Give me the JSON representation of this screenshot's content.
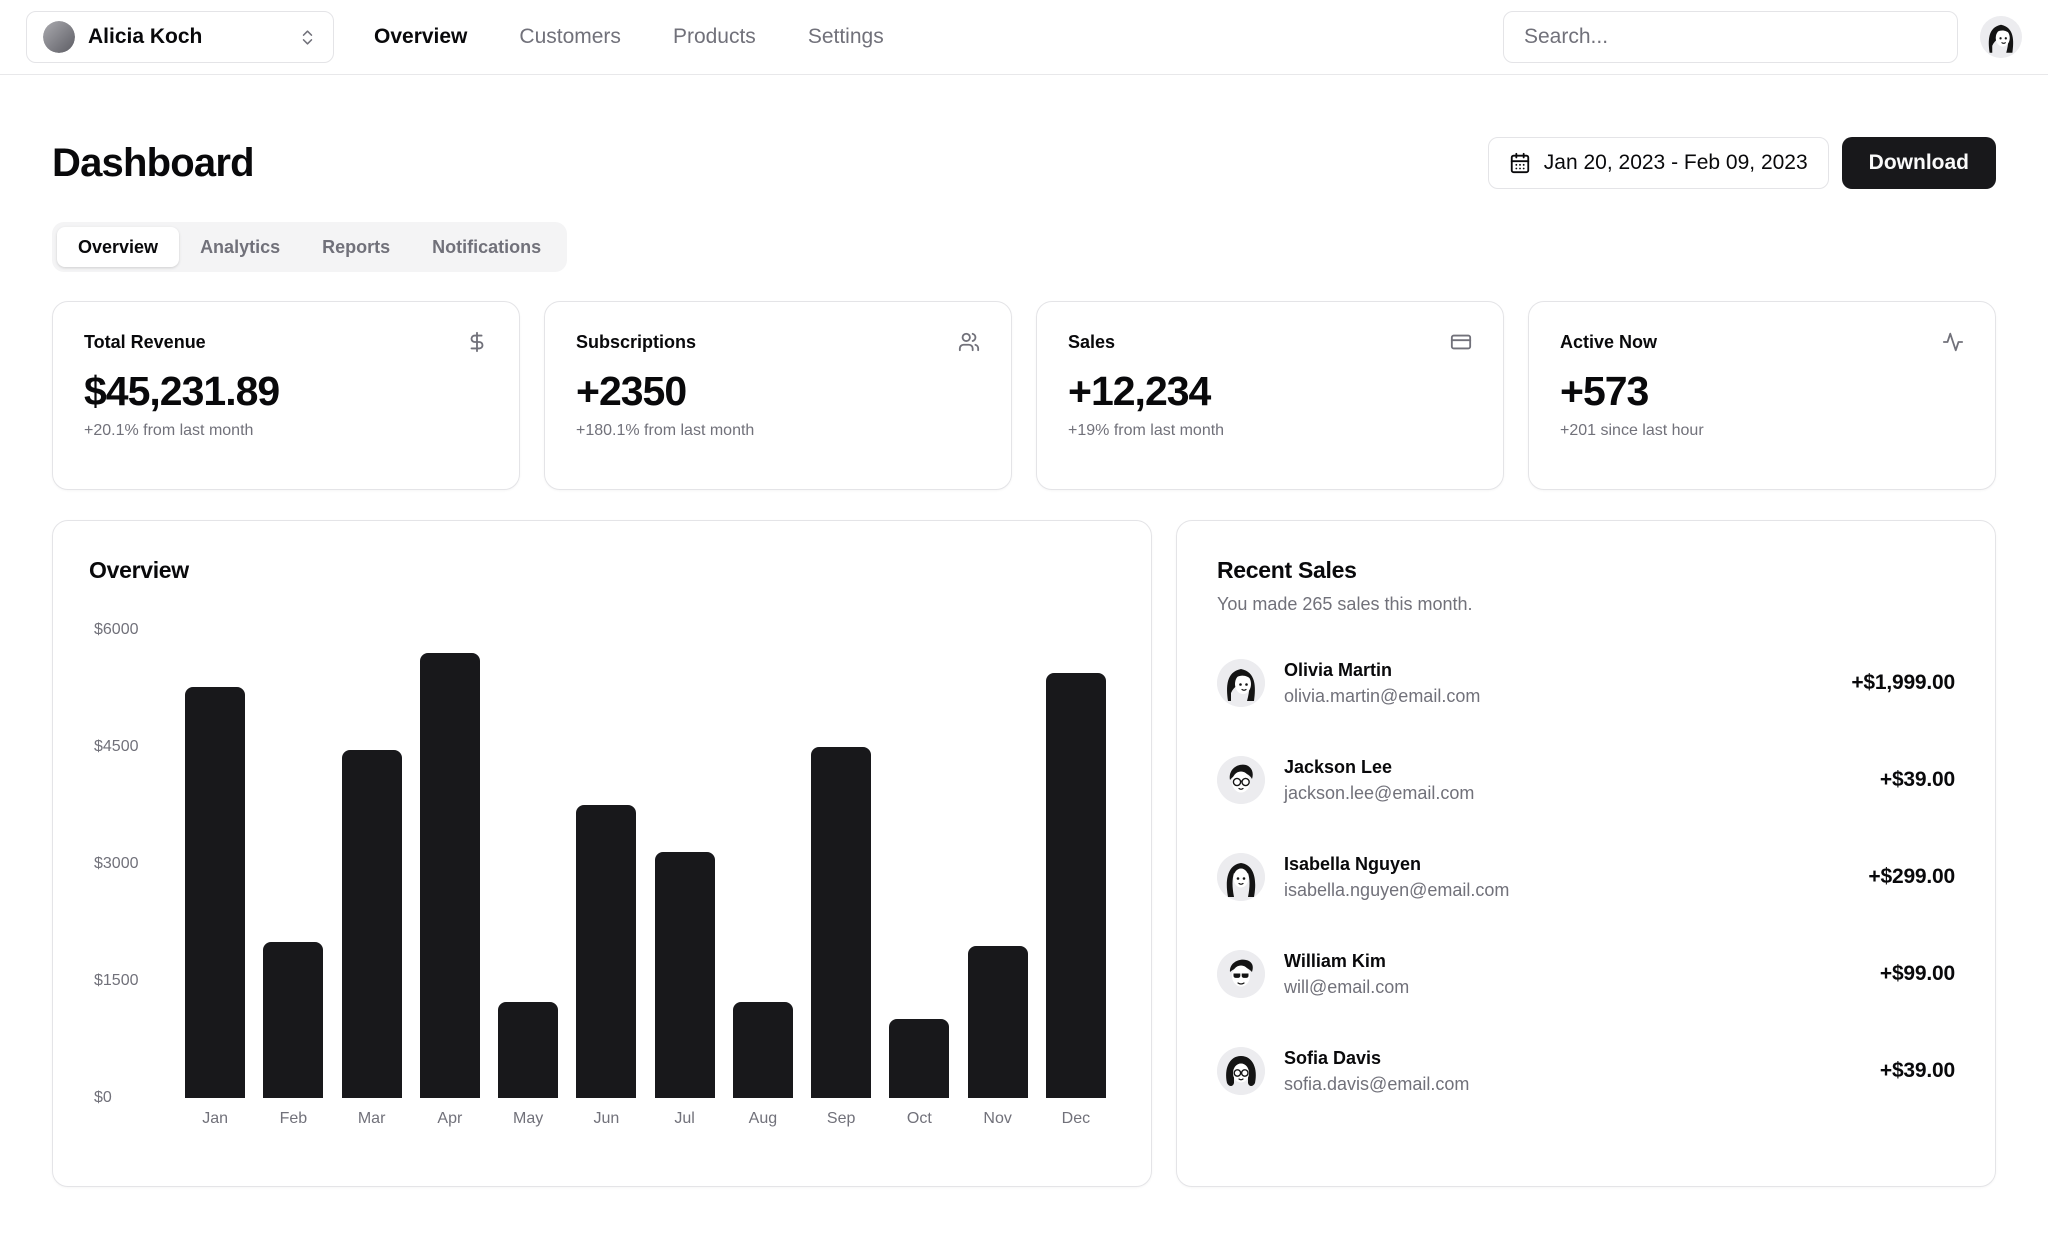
{
  "header": {
    "team_name": "Alicia Koch",
    "nav": [
      "Overview",
      "Customers",
      "Products",
      "Settings"
    ],
    "search_placeholder": "Search...",
    "icons": [
      "chevrons-up-down-icon",
      "user-avatar"
    ]
  },
  "page": {
    "title": "Dashboard",
    "date_range": "Jan 20, 2023 - Feb 09, 2023",
    "date_icon": "calendar-days-icon",
    "download_label": "Download",
    "tabs": [
      {
        "label": "Overview",
        "active": true
      },
      {
        "label": "Analytics",
        "active": false
      },
      {
        "label": "Reports",
        "active": false
      },
      {
        "label": "Notifications",
        "active": false
      }
    ]
  },
  "stats": [
    {
      "title": "Total Revenue",
      "icon": "dollar-sign-icon",
      "value": "$45,231.89",
      "change": "+20.1% from last month"
    },
    {
      "title": "Subscriptions",
      "icon": "users-icon",
      "value": "+2350",
      "change": "+180.1% from last month"
    },
    {
      "title": "Sales",
      "icon": "credit-card-icon",
      "value": "+12,234",
      "change": "+19% from last month"
    },
    {
      "title": "Active Now",
      "icon": "activity-icon",
      "value": "+573",
      "change": "+201 since last hour"
    }
  ],
  "chart_data": {
    "type": "bar",
    "title": "Overview",
    "categories": [
      "Jan",
      "Feb",
      "Mar",
      "Apr",
      "May",
      "Jun",
      "Jul",
      "Aug",
      "Sep",
      "Oct",
      "Nov",
      "Dec"
    ],
    "values": [
      5270,
      2000,
      4460,
      5700,
      1230,
      3760,
      3150,
      1230,
      4500,
      1010,
      1950,
      5450
    ],
    "xlabel": "",
    "ylabel": "",
    "ylim": [
      0,
      6000
    ],
    "yticks": [
      "$6000",
      "$4500",
      "$3000",
      "$1500",
      "$0"
    ],
    "grid": false,
    "legend": "none",
    "bar_color": "#18181b"
  },
  "recent_sales": {
    "title": "Recent Sales",
    "subtitle": "You made 265 sales this month.",
    "items": [
      {
        "name": "Olivia Martin",
        "email": "olivia.martin@email.com",
        "amount": "+$1,999.00"
      },
      {
        "name": "Jackson Lee",
        "email": "jackson.lee@email.com",
        "amount": "+$39.00"
      },
      {
        "name": "Isabella Nguyen",
        "email": "isabella.nguyen@email.com",
        "amount": "+$299.00"
      },
      {
        "name": "William Kim",
        "email": "will@email.com",
        "amount": "+$99.00"
      },
      {
        "name": "Sofia Davis",
        "email": "sofia.davis@email.com",
        "amount": "+$39.00"
      }
    ]
  },
  "colors": {
    "accent": "#18181b",
    "muted_text": "#71717a",
    "border": "#e4e4e7",
    "tab_bg": "#f4f4f5",
    "background": "#ffffff"
  }
}
